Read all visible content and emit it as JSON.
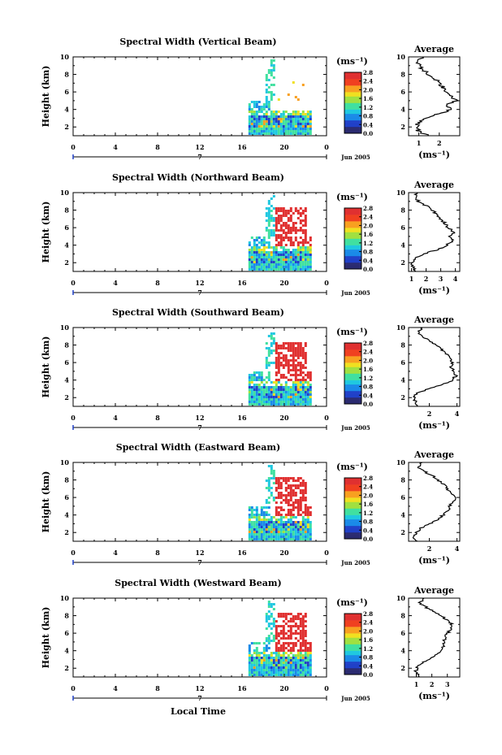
{
  "chart_data": [
    {
      "type": "heatmap",
      "title": "Spectral Width (Vertical Beam)",
      "ylabel": "Height (km)",
      "x_ticks": [
        "0",
        "4",
        "8",
        "12",
        "16",
        "20",
        "0"
      ],
      "x_range": [
        0,
        24
      ],
      "y_range": [
        1,
        10
      ],
      "y_ticks": [
        "2",
        "4",
        "6",
        "8",
        "10"
      ],
      "date_marker": "7",
      "month_label": "Jun 2005",
      "colorbar_unit": "(ms⁻¹)",
      "colorbar_ticks": [
        "0.0",
        "0.4",
        "0.8",
        "1.2",
        "1.6",
        "2.0",
        "2.4",
        "2.8"
      ],
      "colorbar_range": [
        0.0,
        2.8
      ],
      "average": {
        "title": "Average",
        "xlabel": "(ms⁻¹)",
        "x_ticks": [
          "1",
          "2"
        ],
        "x_range": [
          0.5,
          3.0
        ],
        "heights": [
          1,
          1.5,
          2,
          2.5,
          3,
          3.5,
          4,
          4.5,
          5,
          5.5,
          6,
          6.5,
          7,
          7.5,
          8,
          8.5,
          9,
          9.5,
          10
        ],
        "values": [
          1.5,
          1.0,
          0.85,
          1.0,
          1.4,
          2.0,
          2.6,
          2.4,
          2.8,
          2.6,
          2.4,
          2.2,
          2.0,
          1.8,
          1.5,
          1.2,
          1.0,
          0.95,
          1.2
        ]
      }
    },
    {
      "type": "heatmap",
      "title": "Spectral Width (Northward Beam)",
      "ylabel": "Height (km)",
      "x_ticks": [
        "0",
        "4",
        "8",
        "12",
        "16",
        "20",
        "0"
      ],
      "x_range": [
        0,
        24
      ],
      "y_range": [
        1,
        10
      ],
      "y_ticks": [
        "2",
        "4",
        "6",
        "8",
        "10"
      ],
      "date_marker": "7",
      "month_label": "Jun 2005",
      "colorbar_unit": "(ms⁻¹)",
      "colorbar_ticks": [
        "0.0",
        "0.4",
        "0.8",
        "1.2",
        "1.6",
        "2.0",
        "2.4",
        "2.8"
      ],
      "colorbar_range": [
        0.0,
        2.8
      ],
      "average": {
        "title": "Average",
        "xlabel": "(ms⁻¹)",
        "x_ticks": [
          "1",
          "2",
          "3",
          "4"
        ],
        "x_range": [
          0.8,
          4.3
        ],
        "heights": [
          1,
          1.5,
          2,
          2.5,
          3,
          3.5,
          4,
          4.5,
          5,
          5.5,
          6,
          6.5,
          7,
          7.5,
          8,
          8.5,
          9,
          9.5,
          10
        ],
        "values": [
          1.3,
          1.1,
          1.05,
          1.2,
          1.8,
          2.8,
          3.4,
          3.8,
          3.6,
          3.9,
          3.5,
          3.3,
          3.0,
          2.7,
          2.4,
          2.0,
          1.5,
          1.2,
          1.4
        ]
      }
    },
    {
      "type": "heatmap",
      "title": "Spectral Width (Southward Beam)",
      "ylabel": "Height (km)",
      "x_ticks": [
        "0",
        "4",
        "8",
        "12",
        "16",
        "20",
        "0"
      ],
      "x_range": [
        0,
        24
      ],
      "y_range": [
        1,
        10
      ],
      "y_ticks": [
        "2",
        "4",
        "6",
        "8",
        "10"
      ],
      "date_marker": "7",
      "month_label": "Jun 2005",
      "colorbar_unit": "(ms⁻¹)",
      "colorbar_ticks": [
        "0.0",
        "0.4",
        "0.8",
        "1.2",
        "1.6",
        "2.0",
        "2.4",
        "2.8"
      ],
      "colorbar_range": [
        0.0,
        2.8
      ],
      "average": {
        "title": "Average",
        "xlabel": "(ms⁻¹)",
        "x_ticks": [
          "2",
          "4"
        ],
        "x_range": [
          0.5,
          4.2
        ],
        "heights": [
          1,
          1.5,
          2,
          2.5,
          3,
          3.5,
          4,
          4.5,
          5,
          5.5,
          6,
          6.5,
          7,
          7.5,
          8,
          8.5,
          9,
          9.5,
          10
        ],
        "values": [
          1.2,
          1.0,
          0.9,
          1.1,
          2.0,
          3.0,
          3.7,
          3.9,
          3.8,
          3.6,
          3.7,
          3.5,
          3.2,
          2.9,
          2.5,
          2.0,
          1.5,
          1.2,
          1.5
        ]
      }
    },
    {
      "type": "heatmap",
      "title": "Spectral Width (Eastward Beam)",
      "ylabel": "Height (km)",
      "x_ticks": [
        "0",
        "4",
        "8",
        "12",
        "16",
        "20",
        "0"
      ],
      "x_range": [
        0,
        24
      ],
      "y_range": [
        1,
        10
      ],
      "y_ticks": [
        "2",
        "4",
        "6",
        "8",
        "10"
      ],
      "date_marker": "7",
      "month_label": "Jun 2005",
      "colorbar_unit": "(ms⁻¹)",
      "colorbar_ticks": [
        "0.0",
        "0.4",
        "0.8",
        "1.2",
        "1.6",
        "2.0",
        "2.4",
        "2.8"
      ],
      "colorbar_range": [
        0.0,
        2.8
      ],
      "average": {
        "title": "Average",
        "xlabel": "(ms⁻¹)",
        "x_ticks": [
          "2",
          "4"
        ],
        "x_range": [
          0.5,
          4.2
        ],
        "heights": [
          1,
          1.5,
          2,
          2.5,
          3,
          3.5,
          4,
          4.5,
          5,
          5.5,
          6,
          6.5,
          7,
          7.5,
          8,
          8.5,
          9,
          9.5,
          10
        ],
        "values": [
          1.1,
          0.9,
          1.0,
          1.4,
          2.0,
          2.6,
          3.0,
          3.3,
          3.5,
          3.7,
          3.9,
          3.6,
          3.3,
          3.0,
          2.6,
          2.2,
          1.6,
          1.2,
          1.5
        ]
      }
    },
    {
      "type": "heatmap",
      "title": "Spectral Width (Westward Beam)",
      "ylabel": "Height (km)",
      "x_ticks": [
        "0",
        "4",
        "8",
        "12",
        "16",
        "20",
        "0"
      ],
      "x_range": [
        0,
        24
      ],
      "y_range": [
        1,
        10
      ],
      "y_ticks": [
        "2",
        "4",
        "6",
        "8",
        "10"
      ],
      "date_marker": "7",
      "month_label": "Jun 2005",
      "colorbar_unit": "(ms⁻¹)",
      "colorbar_ticks": [
        "0.0",
        "0.4",
        "0.8",
        "1.2",
        "1.6",
        "2.0",
        "2.4",
        "2.8"
      ],
      "colorbar_range": [
        0.0,
        2.8
      ],
      "average": {
        "title": "Average",
        "xlabel": "(ms⁻¹)",
        "x_ticks": [
          "1",
          "2",
          "3"
        ],
        "x_range": [
          0.5,
          3.8
        ],
        "heights": [
          1,
          1.5,
          2,
          2.5,
          3,
          3.5,
          4,
          4.5,
          5,
          5.5,
          6,
          6.5,
          7,
          7.5,
          8,
          8.5,
          9,
          9.5,
          10
        ],
        "values": [
          1.2,
          1.0,
          1.0,
          1.3,
          1.8,
          2.3,
          2.6,
          2.8,
          2.7,
          2.9,
          3.0,
          3.2,
          3.3,
          3.0,
          2.6,
          2.1,
          1.6,
          1.2,
          1.5
        ]
      }
    }
  ],
  "figure": {
    "xlabel": "Local Time"
  },
  "colors": {
    "axis": "#000000",
    "colormap": [
      "#2b2b70",
      "#2040c8",
      "#1a8ae8",
      "#20c8e0",
      "#40e0a0",
      "#a0e040",
      "#f0e020",
      "#f8a020",
      "#f04020",
      "#e03030"
    ]
  }
}
